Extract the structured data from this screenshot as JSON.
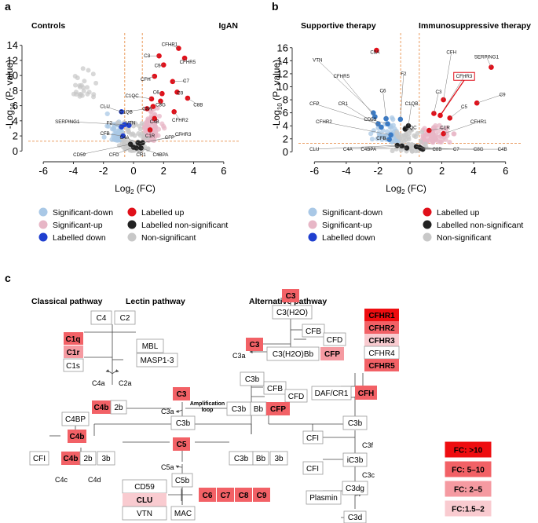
{
  "panel_labels": {
    "a": "a",
    "b": "b",
    "c": "c"
  },
  "colors": {
    "sig_down": "#a9c8e6",
    "sig_up": "#e7b6c6",
    "lab_down": "#1f3fcf",
    "lab_up": "#e0101a",
    "lab_ns": "#222222",
    "non_sig": "#c8c8c8",
    "threshold": "#e8914f"
  },
  "legend": {
    "sig_down": "Significant-down",
    "sig_up": "Significant-up",
    "lab_down": "Labelled down",
    "lab_up": "Labelled up",
    "lab_ns": "Labelled non-significant",
    "non_sig": "Non-significant"
  },
  "chart_data": [
    {
      "type": "scatter",
      "panel": "a",
      "left_title": "Controls",
      "right_title": "IgAN",
      "xlabel_main": "Log",
      "xlabel_sub": "2",
      "xlabel_tail": " (FC)",
      "ylabel_main": "-Log",
      "ylabel_sub": "10",
      "ylabel_tail": " (P- value)",
      "xlim": [
        -7,
        7
      ],
      "ylim": [
        -0.8,
        14.8
      ],
      "xticks": [
        -6,
        -4,
        -2,
        0,
        2,
        4,
        6
      ],
      "yticks": [
        0,
        2,
        4,
        6,
        8,
        10,
        12,
        14
      ],
      "thresholds": {
        "x": [
          -0.585,
          0.585
        ],
        "y": 1.3
      },
      "labelled": [
        {
          "name": "CFHR1",
          "x": 3.0,
          "y": 13.6,
          "tx": 2.4,
          "ty": 14.1,
          "cls": "up"
        },
        {
          "name": "C3",
          "x": 1.7,
          "y": 12.6,
          "tx": 0.9,
          "ty": 12.6,
          "cls": "up"
        },
        {
          "name": "CFHR5",
          "x": 3.4,
          "y": 12.3,
          "tx": 3.6,
          "ty": 11.8,
          "cls": "up"
        },
        {
          "name": "C5",
          "x": 2.0,
          "y": 11.4,
          "tx": 1.6,
          "ty": 11.3,
          "cls": "up"
        },
        {
          "name": "CFH",
          "x": 1.4,
          "y": 9.9,
          "tx": 0.8,
          "ty": 9.5,
          "cls": "up"
        },
        {
          "name": "C7",
          "x": 2.6,
          "y": 9.2,
          "tx": 3.5,
          "ty": 9.3,
          "cls": "up"
        },
        {
          "name": "C9",
          "x": 2.9,
          "y": 7.8,
          "tx": 3.1,
          "ty": 7.7,
          "cls": "up"
        },
        {
          "name": "C6",
          "x": 1.9,
          "y": 7.6,
          "tx": 1.5,
          "ty": 7.8,
          "cls": "up"
        },
        {
          "name": "C8B",
          "x": 3.6,
          "y": 7.0,
          "tx": 4.3,
          "ty": 6.1,
          "cls": "up"
        },
        {
          "name": "C1QC",
          "x": 1.2,
          "y": 6.9,
          "tx": -0.1,
          "ty": 7.3,
          "cls": "up"
        },
        {
          "name": "C8G",
          "x": 1.8,
          "y": 6.6,
          "tx": 1.8,
          "ty": 6.1,
          "cls": "up"
        },
        {
          "name": "C8A",
          "x": 1.3,
          "y": 5.9,
          "tx": 0.9,
          "ty": 5.6,
          "cls": "up"
        },
        {
          "name": "C1QB",
          "x": 0.9,
          "y": 5.6,
          "tx": -0.5,
          "ty": 5.2,
          "cls": "up"
        },
        {
          "name": "CFHR2",
          "x": 2.7,
          "y": 5.2,
          "tx": 3.1,
          "ty": 4.1,
          "cls": "up"
        },
        {
          "name": "C4B",
          "x": 1.4,
          "y": 4.3,
          "tx": 1.4,
          "ty": 3.9,
          "cls": "up"
        },
        {
          "name": "C1R",
          "x": 1.1,
          "y": 2.8,
          "tx": 1.1,
          "ty": 2.0,
          "cls": "up"
        },
        {
          "name": "CLU",
          "x": -0.8,
          "y": 5.2,
          "tx": -1.9,
          "ty": 5.9,
          "cls": "down"
        },
        {
          "name": "SERPING1",
          "x": -0.6,
          "y": 3.5,
          "tx": -4.4,
          "ty": 3.9,
          "cls": "down"
        },
        {
          "name": "F2",
          "x": -0.8,
          "y": 3.2,
          "tx": -1.6,
          "ty": 3.7,
          "cls": "down"
        },
        {
          "name": "VTN",
          "x": -0.3,
          "y": 3.4,
          "tx": -0.2,
          "ty": 3.7,
          "cls": "down"
        },
        {
          "name": "CFB",
          "x": -0.7,
          "y": 2.0,
          "tx": -1.9,
          "ty": 2.3,
          "cls": "down"
        },
        {
          "name": "C4A",
          "x": 0.3,
          "y": 1.1,
          "tx": -0.6,
          "ty": 1.8,
          "cls": "ns"
        },
        {
          "name": "CFP",
          "x": 0.4,
          "y": 1.0,
          "tx": 2.4,
          "ty": 1.8,
          "cls": "ns"
        },
        {
          "name": "CFHR3",
          "x": 0.6,
          "y": 1.1,
          "tx": 3.3,
          "ty": 2.2,
          "cls": "ns"
        },
        {
          "name": "CD59",
          "x": -0.2,
          "y": 0.9,
          "tx": -3.6,
          "ty": -0.5,
          "cls": "ns"
        },
        {
          "name": "CFD",
          "x": 0.0,
          "y": 0.5,
          "tx": -1.3,
          "ty": -0.5,
          "cls": "ns"
        },
        {
          "name": "CR1",
          "x": 0.2,
          "y": 0.4,
          "tx": 0.5,
          "ty": -0.5,
          "cls": "ns"
        },
        {
          "name": "C4BPA",
          "x": 0.5,
          "y": 0.4,
          "tx": 1.8,
          "ty": -0.5,
          "cls": "ns"
        }
      ]
    },
    {
      "type": "scatter",
      "panel": "b",
      "left_title": "Supportive therapy",
      "right_title": "Immunosuppressive therapy",
      "xlabel_main": "Log",
      "xlabel_sub": "2",
      "xlabel_tail": " (FC)",
      "ylabel_main": "-Log",
      "ylabel_sub": "10",
      "ylabel_tail": " (P- value)",
      "xlim": [
        -7,
        7
      ],
      "ylim": [
        -0.8,
        17.3
      ],
      "xticks": [
        -6,
        -4,
        -2,
        0,
        2,
        4,
        6
      ],
      "yticks": [
        0,
        2,
        4,
        6,
        8,
        10,
        12,
        14,
        16
      ],
      "thresholds": {
        "x": [
          -0.585,
          0.585
        ],
        "y": 1.3
      },
      "labelled": [
        {
          "name": "C8A",
          "x": -2.1,
          "y": 15.6,
          "tx": -2.2,
          "ty": 15.3,
          "cls": "up"
        },
        {
          "name": "CFH",
          "x": 2.1,
          "y": 8.0,
          "tx": 2.6,
          "ty": 15.3,
          "cls": "up"
        },
        {
          "name": "SERPING1",
          "x": 5.1,
          "y": 13.0,
          "tx": 4.8,
          "ty": 14.6,
          "cls": "up"
        },
        {
          "name": "VTN",
          "x": -2.3,
          "y": 6.0,
          "tx": -5.8,
          "ty": 14.1,
          "cls": "down"
        },
        {
          "name": "CFHR5",
          "x": -2.2,
          "y": 5.4,
          "tx": -4.3,
          "ty": 11.6,
          "cls": "down"
        },
        {
          "name": "F2",
          "x": -0.6,
          "y": 5.0,
          "tx": -0.4,
          "ty": 12.0,
          "cls": "down"
        },
        {
          "name": "CFHR3",
          "x": 1.9,
          "y": 5.6,
          "tx": 3.4,
          "ty": 11.6,
          "cls": "up",
          "box": true
        },
        {
          "name": "C6",
          "x": -1.5,
          "y": 5.1,
          "tx": -1.7,
          "ty": 9.4,
          "cls": "down"
        },
        {
          "name": "C3",
          "x": 1.5,
          "y": 5.9,
          "tx": 1.8,
          "ty": 9.2,
          "cls": "up"
        },
        {
          "name": "C9",
          "x": 4.2,
          "y": 7.5,
          "tx": 5.8,
          "ty": 8.8,
          "cls": "up"
        },
        {
          "name": "CFP",
          "x": -2.0,
          "y": 4.3,
          "tx": -6.0,
          "ty": 7.4,
          "cls": "down"
        },
        {
          "name": "CR1",
          "x": -1.8,
          "y": 3.8,
          "tx": -4.2,
          "ty": 7.4,
          "cls": "down"
        },
        {
          "name": "C1QB",
          "x": -0.1,
          "y": 4.0,
          "tx": 0.1,
          "ty": 7.4,
          "cls": "ns"
        },
        {
          "name": "C5",
          "x": 2.5,
          "y": 5.2,
          "tx": 3.4,
          "ty": 6.9,
          "cls": "up"
        },
        {
          "name": "CD59",
          "x": -1.4,
          "y": 4.3,
          "tx": -2.5,
          "ty": 5.0,
          "cls": "down"
        },
        {
          "name": "CFHR2",
          "x": -1.2,
          "y": 2.6,
          "tx": -5.4,
          "ty": 4.6,
          "cls": "down"
        },
        {
          "name": "CFHR1",
          "x": 2.1,
          "y": 2.8,
          "tx": 4.3,
          "ty": 4.6,
          "cls": "up"
        },
        {
          "name": "C1QC",
          "x": -0.3,
          "y": 3.5,
          "tx": 0.0,
          "ty": 3.7,
          "cls": "ns"
        },
        {
          "name": "C1R",
          "x": 1.2,
          "y": 3.3,
          "tx": 2.2,
          "ty": 3.7,
          "cls": "up"
        },
        {
          "name": "CFB",
          "x": -1.3,
          "y": 1.9,
          "tx": -1.8,
          "ty": 2.1,
          "cls": "down"
        },
        {
          "name": "CLU",
          "x": -0.8,
          "y": 1.0,
          "tx": -6.0,
          "ty": 0.4,
          "cls": "ns"
        },
        {
          "name": "C4A",
          "x": -0.5,
          "y": 0.9,
          "tx": -3.9,
          "ty": 0.4,
          "cls": "ns"
        },
        {
          "name": "C4BPA",
          "x": -0.2,
          "y": 0.6,
          "tx": -2.6,
          "ty": 0.4,
          "cls": "ns"
        },
        {
          "name": "C8B",
          "x": 0.4,
          "y": 0.8,
          "tx": 1.7,
          "ty": 0.4,
          "cls": "ns"
        },
        {
          "name": "C7",
          "x": 0.6,
          "y": 0.7,
          "tx": 2.9,
          "ty": 0.4,
          "cls": "ns"
        },
        {
          "name": "C8G",
          "x": 0.7,
          "y": 0.5,
          "tx": 4.3,
          "ty": 0.4,
          "cls": "ns"
        },
        {
          "name": "C4B",
          "x": 0.8,
          "y": 0.4,
          "tx": 5.8,
          "ty": 0.4,
          "cls": "ns"
        }
      ]
    }
  ],
  "pathway": {
    "classical_title": "Classical pathway",
    "lectin_title": "Lectin pathway",
    "alternative_title": "Alternative pathway",
    "amplification_label": "Amplification\nloop",
    "legend": [
      {
        "key": "fc1",
        "label": "FC: >10",
        "color": "#ee0d10"
      },
      {
        "key": "fc2",
        "label": "FC: 5–10",
        "color": "#f26166"
      },
      {
        "key": "fc3",
        "label": "FC: 2–5",
        "color": "#f59aa1"
      },
      {
        "key": "fc4",
        "label": "FC:1.5–2",
        "color": "#f9cbd0"
      }
    ],
    "nodes": {
      "c4": "C4",
      "c2": "C2",
      "c1q": "C1q",
      "c1r": "C1r",
      "c1s": "C1s",
      "mbl": "MBL",
      "masp": "MASP1-3",
      "c4a": "C4a",
      "c2a": "C2a",
      "c4b1": "C4b",
      "twob1": "2b",
      "c4bp": "C4BP",
      "c4b2": "C4b",
      "cfi1": "CFI",
      "c4b3": "C4b",
      "twob2": "2b",
      "threeb1": "3b",
      "c4c": "C4c",
      "c4d": "C4d",
      "c3l": "C3",
      "c3a1": "C3a",
      "c3b1": "C3b",
      "c5": "C5",
      "c5a": "C5a",
      "c5b": "C5b",
      "cd59": "CD59",
      "clu": "CLU",
      "vtn": "VTN",
      "mac": "MAC",
      "c6": "C6",
      "c7": "C7",
      "c8": "C8",
      "c9": "C9",
      "c3top": "C3",
      "c3h2o": "C3(H2O)",
      "cfb1": "CFB",
      "cfd1": "CFD",
      "c3r": "C3",
      "c3a2": "C3a",
      "c3h2obb": "C3(H2O)Bb",
      "cfp1": "CFP",
      "c3b2": "C3b",
      "cfb2": "CFB",
      "cfd2": "CFD",
      "daf": "DAF/CR1",
      "c3b3": "C3b",
      "bb1": "Bb",
      "cfp2": "CFP",
      "c3b4": "C3b",
      "bb2": "Bb",
      "threeb2": "3b",
      "cfhr1": "CFHR1",
      "cfhr2": "CFHR2",
      "cfhr3": "CFHR3",
      "cfhr4": "CFHR4",
      "cfhr5": "CFHR5",
      "cfh": "CFH",
      "c3b5": "C3b",
      "cfi2": "CFI",
      "c3f": "C3f",
      "ic3b": "iC3b",
      "cfi3": "CFI",
      "c3c": "C3c",
      "c3dg": "C3dg",
      "plasmin": "Plasmin",
      "c3d": "C3d"
    }
  }
}
